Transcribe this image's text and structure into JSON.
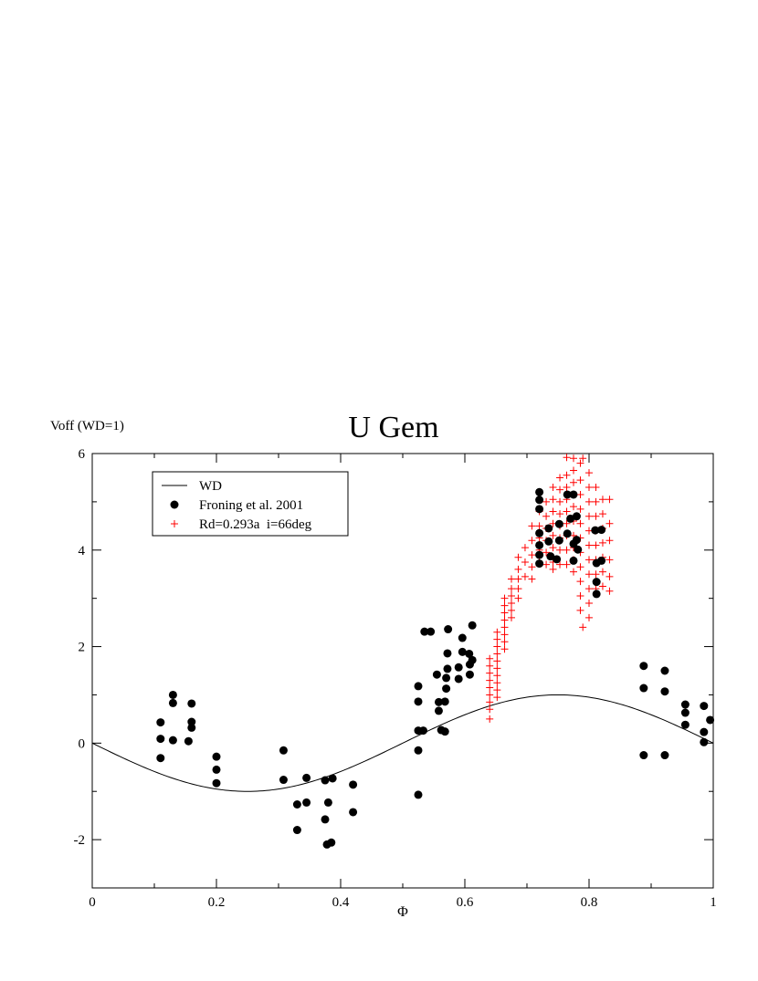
{
  "chart_data": {
    "type": "scatter",
    "title": "U Gem",
    "xlabel": "Φ",
    "ylabel": "Voff (WD=1)",
    "xlim": [
      0,
      1
    ],
    "ylim": [
      -3,
      6
    ],
    "xticks": [
      0,
      0.2,
      0.4,
      0.6,
      0.8,
      1
    ],
    "xtick_labels": [
      "0",
      "0.2",
      "0.4",
      "0.6",
      "0.8",
      "1"
    ],
    "yticks": [
      -2,
      0,
      2,
      4,
      6
    ],
    "ytick_labels": [
      "-2",
      "0",
      "2",
      "4",
      "6"
    ],
    "grid": false,
    "legend_position": "top-left",
    "series": [
      {
        "name": "WD",
        "kind": "line",
        "function": "-sin(2*pi*x)",
        "color": "#000000"
      },
      {
        "name": "Froning et al. 2001",
        "kind": "scatter",
        "marker": "filled-circle",
        "color": "#000000",
        "points": [
          [
            0.11,
            0.43
          ],
          [
            0.11,
            0.09
          ],
          [
            0.11,
            -0.31
          ],
          [
            0.13,
            1.0
          ],
          [
            0.13,
            0.83
          ],
          [
            0.13,
            0.06
          ],
          [
            0.155,
            0.04
          ],
          [
            0.16,
            0.82
          ],
          [
            0.16,
            0.44
          ],
          [
            0.16,
            0.32
          ],
          [
            0.2,
            -0.28
          ],
          [
            0.2,
            -0.55
          ],
          [
            0.2,
            -0.83
          ],
          [
            0.308,
            -0.15
          ],
          [
            0.308,
            -0.76
          ],
          [
            0.33,
            -1.27
          ],
          [
            0.33,
            -1.8
          ],
          [
            0.345,
            -0.72
          ],
          [
            0.345,
            -1.23
          ],
          [
            0.375,
            -0.77
          ],
          [
            0.375,
            -1.58
          ],
          [
            0.378,
            -2.1
          ],
          [
            0.38,
            -1.23
          ],
          [
            0.385,
            -2.06
          ],
          [
            0.387,
            -0.73
          ],
          [
            0.42,
            -0.86
          ],
          [
            0.42,
            -1.43
          ],
          [
            0.525,
            1.18
          ],
          [
            0.525,
            0.86
          ],
          [
            0.525,
            0.26
          ],
          [
            0.525,
            -0.15
          ],
          [
            0.525,
            -1.07
          ],
          [
            0.533,
            0.26
          ],
          [
            0.535,
            2.31
          ],
          [
            0.545,
            2.31
          ],
          [
            0.555,
            1.42
          ],
          [
            0.558,
            0.85
          ],
          [
            0.558,
            0.67
          ],
          [
            0.562,
            0.27
          ],
          [
            0.568,
            0.86
          ],
          [
            0.568,
            0.24
          ],
          [
            0.57,
            1.35
          ],
          [
            0.57,
            1.13
          ],
          [
            0.572,
            1.86
          ],
          [
            0.572,
            1.54
          ],
          [
            0.573,
            2.36
          ],
          [
            0.59,
            1.57
          ],
          [
            0.59,
            1.33
          ],
          [
            0.596,
            2.18
          ],
          [
            0.596,
            1.89
          ],
          [
            0.607,
            1.85
          ],
          [
            0.608,
            1.42
          ],
          [
            0.608,
            1.63
          ],
          [
            0.612,
            2.44
          ],
          [
            0.612,
            1.72
          ],
          [
            0.72,
            5.2
          ],
          [
            0.72,
            5.04
          ],
          [
            0.72,
            4.85
          ],
          [
            0.72,
            4.35
          ],
          [
            0.72,
            4.1
          ],
          [
            0.72,
            3.9
          ],
          [
            0.72,
            3.72
          ],
          [
            0.735,
            4.45
          ],
          [
            0.735,
            4.18
          ],
          [
            0.738,
            3.87
          ],
          [
            0.748,
            3.81
          ],
          [
            0.752,
            4.54
          ],
          [
            0.752,
            4.2
          ],
          [
            0.765,
            5.15
          ],
          [
            0.765,
            4.34
          ],
          [
            0.77,
            4.65
          ],
          [
            0.775,
            5.15
          ],
          [
            0.775,
            4.13
          ],
          [
            0.775,
            3.78
          ],
          [
            0.78,
            4.7
          ],
          [
            0.78,
            4.21
          ],
          [
            0.782,
            4.01
          ],
          [
            0.81,
            4.41
          ],
          [
            0.812,
            3.73
          ],
          [
            0.812,
            3.34
          ],
          [
            0.812,
            3.09
          ],
          [
            0.82,
            4.42
          ],
          [
            0.82,
            3.78
          ],
          [
            0.888,
            1.6
          ],
          [
            0.888,
            1.14
          ],
          [
            0.888,
            -0.25
          ],
          [
            0.922,
            1.5
          ],
          [
            0.922,
            1.07
          ],
          [
            0.922,
            -0.25
          ],
          [
            0.955,
            0.8
          ],
          [
            0.955,
            0.63
          ],
          [
            0.955,
            0.38
          ],
          [
            0.985,
            0.77
          ],
          [
            0.985,
            0.23
          ],
          [
            0.985,
            0.02
          ],
          [
            0.995,
            0.48
          ]
        ]
      },
      {
        "name": "Rd=0.293a  i=66deg",
        "kind": "scatter",
        "marker": "plus",
        "color": "#ff0000",
        "points": [
          [
            0.64,
            1.75
          ],
          [
            0.64,
            1.6
          ],
          [
            0.64,
            1.45
          ],
          [
            0.64,
            1.3
          ],
          [
            0.64,
            1.15
          ],
          [
            0.64,
            1.0
          ],
          [
            0.64,
            0.85
          ],
          [
            0.64,
            0.7
          ],
          [
            0.64,
            0.5
          ],
          [
            0.652,
            2.3
          ],
          [
            0.652,
            2.15
          ],
          [
            0.652,
            2.0
          ],
          [
            0.652,
            1.85
          ],
          [
            0.652,
            1.7
          ],
          [
            0.652,
            1.55
          ],
          [
            0.652,
            1.4
          ],
          [
            0.652,
            1.25
          ],
          [
            0.652,
            1.1
          ],
          [
            0.652,
            0.95
          ],
          [
            0.664,
            3.0
          ],
          [
            0.664,
            2.85
          ],
          [
            0.664,
            2.7
          ],
          [
            0.664,
            2.55
          ],
          [
            0.664,
            2.4
          ],
          [
            0.664,
            2.25
          ],
          [
            0.664,
            2.1
          ],
          [
            0.664,
            1.95
          ],
          [
            0.675,
            3.4
          ],
          [
            0.675,
            3.2
          ],
          [
            0.675,
            3.05
          ],
          [
            0.675,
            2.9
          ],
          [
            0.675,
            2.75
          ],
          [
            0.675,
            2.6
          ],
          [
            0.686,
            3.85
          ],
          [
            0.686,
            3.6
          ],
          [
            0.686,
            3.4
          ],
          [
            0.686,
            3.2
          ],
          [
            0.686,
            3.0
          ],
          [
            0.697,
            4.05
          ],
          [
            0.697,
            3.75
          ],
          [
            0.697,
            3.45
          ],
          [
            0.708,
            4.5
          ],
          [
            0.708,
            4.2
          ],
          [
            0.708,
            3.9
          ],
          [
            0.708,
            3.65
          ],
          [
            0.708,
            3.4
          ],
          [
            0.72,
            4.8
          ],
          [
            0.72,
            4.5
          ],
          [
            0.72,
            4.25
          ],
          [
            0.72,
            4.0
          ],
          [
            0.72,
            3.75
          ],
          [
            0.731,
            5.0
          ],
          [
            0.731,
            4.7
          ],
          [
            0.731,
            4.45
          ],
          [
            0.731,
            4.2
          ],
          [
            0.731,
            3.95
          ],
          [
            0.731,
            3.7
          ],
          [
            0.742,
            5.3
          ],
          [
            0.742,
            5.05
          ],
          [
            0.742,
            4.8
          ],
          [
            0.742,
            4.55
          ],
          [
            0.742,
            4.3
          ],
          [
            0.742,
            4.05
          ],
          [
            0.742,
            3.75
          ],
          [
            0.742,
            3.6
          ],
          [
            0.753,
            5.5
          ],
          [
            0.753,
            5.25
          ],
          [
            0.753,
            5.0
          ],
          [
            0.753,
            4.75
          ],
          [
            0.753,
            4.5
          ],
          [
            0.753,
            4.25
          ],
          [
            0.753,
            4.0
          ],
          [
            0.753,
            3.7
          ],
          [
            0.764,
            5.92
          ],
          [
            0.764,
            5.55
          ],
          [
            0.764,
            5.3
          ],
          [
            0.764,
            5.05
          ],
          [
            0.764,
            4.8
          ],
          [
            0.764,
            4.55
          ],
          [
            0.764,
            4.3
          ],
          [
            0.764,
            4.0
          ],
          [
            0.764,
            3.7
          ],
          [
            0.775,
            5.9
          ],
          [
            0.775,
            5.65
          ],
          [
            0.775,
            5.4
          ],
          [
            0.775,
            5.15
          ],
          [
            0.775,
            4.9
          ],
          [
            0.775,
            4.6
          ],
          [
            0.775,
            4.3
          ],
          [
            0.775,
            4.05
          ],
          [
            0.775,
            3.8
          ],
          [
            0.775,
            3.55
          ],
          [
            0.786,
            5.8
          ],
          [
            0.786,
            5.45
          ],
          [
            0.786,
            5.15
          ],
          [
            0.786,
            4.85
          ],
          [
            0.786,
            4.55
          ],
          [
            0.786,
            4.25
          ],
          [
            0.786,
            3.95
          ],
          [
            0.786,
            3.65
          ],
          [
            0.786,
            3.35
          ],
          [
            0.786,
            3.05
          ],
          [
            0.786,
            2.75
          ],
          [
            0.79,
            5.9
          ],
          [
            0.79,
            2.4
          ],
          [
            0.8,
            5.6
          ],
          [
            0.8,
            5.3
          ],
          [
            0.8,
            5.0
          ],
          [
            0.8,
            4.7
          ],
          [
            0.8,
            4.4
          ],
          [
            0.8,
            4.1
          ],
          [
            0.8,
            3.8
          ],
          [
            0.8,
            3.5
          ],
          [
            0.8,
            3.2
          ],
          [
            0.8,
            2.9
          ],
          [
            0.8,
            2.6
          ],
          [
            0.811,
            5.3
          ],
          [
            0.811,
            5.0
          ],
          [
            0.811,
            4.7
          ],
          [
            0.811,
            4.4
          ],
          [
            0.811,
            4.1
          ],
          [
            0.811,
            3.8
          ],
          [
            0.811,
            3.5
          ],
          [
            0.811,
            3.2
          ],
          [
            0.822,
            5.05
          ],
          [
            0.822,
            4.75
          ],
          [
            0.822,
            4.45
          ],
          [
            0.822,
            4.15
          ],
          [
            0.822,
            3.85
          ],
          [
            0.822,
            3.55
          ],
          [
            0.822,
            3.25
          ],
          [
            0.833,
            5.05
          ],
          [
            0.833,
            4.55
          ],
          [
            0.833,
            4.2
          ],
          [
            0.833,
            3.8
          ],
          [
            0.833,
            3.45
          ],
          [
            0.833,
            3.15
          ]
        ]
      }
    ]
  }
}
